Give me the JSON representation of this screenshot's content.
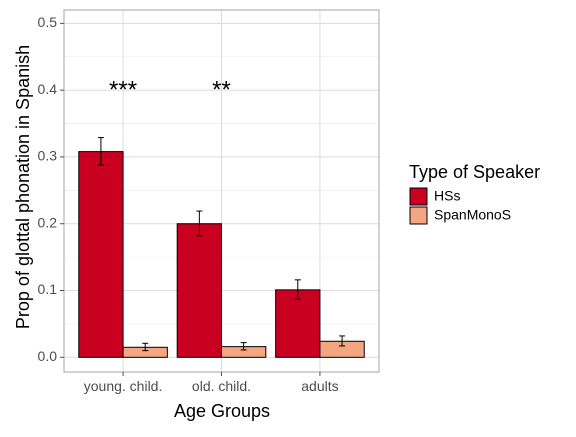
{
  "chart_data": {
    "type": "bar",
    "xlabel": "Age Groups",
    "ylabel": "Prop of glottal phonation in Spanish",
    "categories": [
      "young. child.",
      "old. child.",
      "adults"
    ],
    "ylim": [
      -0.022,
      0.52
    ],
    "yticks": [
      0.0,
      0.1,
      0.2,
      0.3,
      0.4,
      0.5
    ],
    "ytick_labels": [
      "0.0",
      "0.1",
      "0.2",
      "0.3",
      "0.4",
      "0.5"
    ],
    "grid": true,
    "series": [
      {
        "name": "HSs",
        "color": "#CA0020",
        "values": [
          0.308,
          0.2,
          0.101
        ],
        "error_low": [
          0.288,
          0.182,
          0.087
        ],
        "error_high": [
          0.329,
          0.219,
          0.116
        ]
      },
      {
        "name": "SpanMonoS",
        "color": "#F4A582",
        "values": [
          0.015,
          0.016,
          0.024
        ],
        "error_low": [
          0.01,
          0.011,
          0.017
        ],
        "error_high": [
          0.021,
          0.022,
          0.032
        ]
      }
    ],
    "annotations": [
      {
        "category": "young. child.",
        "text": "***",
        "y": 0.4
      },
      {
        "category": "old. child.",
        "text": "**",
        "y": 0.4
      }
    ],
    "legend": {
      "title": "Type of Speaker",
      "position": "right"
    }
  }
}
